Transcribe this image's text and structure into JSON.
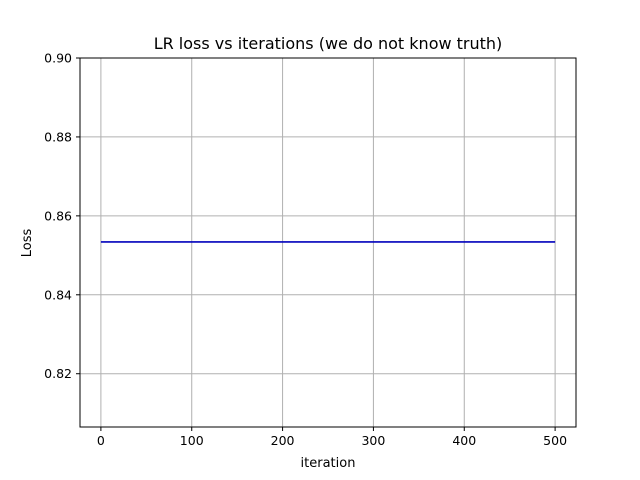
{
  "chart_data": {
    "type": "line",
    "title": "LR loss vs iterations (we do not know truth)",
    "xlabel": "iteration",
    "ylabel": "Loss",
    "xlim": [
      -23,
      523
    ],
    "ylim": [
      0.8065,
      0.9
    ],
    "xticks": [
      0,
      100,
      200,
      300,
      400,
      500
    ],
    "xtick_labels": [
      "0",
      "100",
      "200",
      "300",
      "400",
      "500"
    ],
    "yticks": [
      0.82,
      0.84,
      0.86,
      0.88,
      0.9
    ],
    "ytick_labels": [
      "0.82",
      "0.84",
      "0.86",
      "0.88",
      "0.90"
    ],
    "grid": true,
    "series": [
      {
        "color": "#0000bb",
        "x": [
          0,
          500
        ],
        "y": [
          0.8534,
          0.8534
        ]
      }
    ]
  }
}
